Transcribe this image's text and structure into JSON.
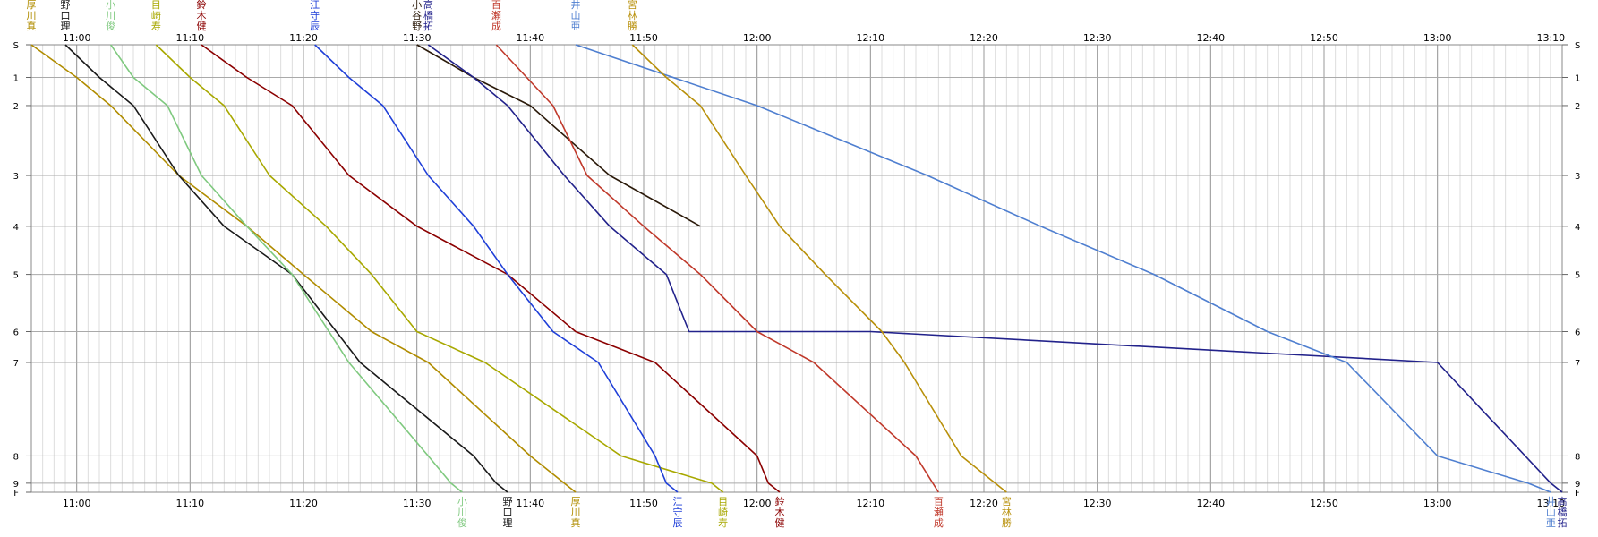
{
  "chart_data": {
    "type": "line",
    "x_unit": "time",
    "x_ticks": [
      "11:00",
      "11:10",
      "11:20",
      "11:30",
      "11:40",
      "11:50",
      "12:00",
      "12:10",
      "12:20",
      "12:30",
      "12:40",
      "12:50",
      "13:00",
      "13:10"
    ],
    "x_minor_step_min": 1,
    "x_range": [
      "10:56",
      "13:11"
    ],
    "y_ticks": [
      "S",
      "1",
      "2",
      "3",
      "4",
      "5",
      "6",
      "7",
      "8",
      "9",
      "F"
    ],
    "y_positions": [
      0,
      0.36,
      0.67,
      1.44,
      2.0,
      2.53,
      3.16,
      3.5,
      4.53,
      4.83,
      4.93
    ],
    "grid": true,
    "series": [
      {
        "name": "厚川真",
        "color": "#b08c00",
        "points": [
          [
            "10:56",
            "S"
          ],
          [
            "11:00",
            "1"
          ],
          [
            "11:03",
            "2"
          ],
          [
            "11:09",
            "3"
          ],
          [
            "11:15",
            "4"
          ],
          [
            "11:20",
            "5"
          ],
          [
            "11:26",
            "6"
          ],
          [
            "11:31",
            "7"
          ],
          [
            "11:40",
            "8"
          ],
          [
            "11:43",
            "9"
          ],
          [
            "11:44",
            "F"
          ]
        ]
      },
      {
        "name": "野口理",
        "color": "#1a1a1a",
        "points": [
          [
            "10:59",
            "S"
          ],
          [
            "11:02",
            "1"
          ],
          [
            "11:05",
            "2"
          ],
          [
            "11:09",
            "3"
          ],
          [
            "11:13",
            "4"
          ],
          [
            "11:19",
            "5"
          ],
          [
            "11:25",
            "7"
          ],
          [
            "11:35",
            "8"
          ],
          [
            "11:37",
            "9"
          ],
          [
            "11:38",
            "F"
          ]
        ]
      },
      {
        "name": "小川俊",
        "color": "#7fc97f",
        "points": [
          [
            "11:03",
            "S"
          ],
          [
            "11:05",
            "1"
          ],
          [
            "11:08",
            "2"
          ],
          [
            "11:11",
            "3"
          ],
          [
            "11:15",
            "4"
          ],
          [
            "11:19",
            "5"
          ],
          [
            "11:24",
            "7"
          ],
          [
            "11:31",
            "8"
          ],
          [
            "11:33",
            "9"
          ],
          [
            "11:34",
            "F"
          ]
        ]
      },
      {
        "name": "目崎寿",
        "color": "#a8a800",
        "points": [
          [
            "11:07",
            "S"
          ],
          [
            "11:10",
            "1"
          ],
          [
            "11:13",
            "2"
          ],
          [
            "11:17",
            "3"
          ],
          [
            "11:22",
            "4"
          ],
          [
            "11:26",
            "5"
          ],
          [
            "11:30",
            "6"
          ],
          [
            "11:36",
            "7"
          ],
          [
            "11:48",
            "8"
          ],
          [
            "11:56",
            "9"
          ],
          [
            "11:57",
            "F"
          ]
        ]
      },
      {
        "name": "鈴木健",
        "color": "#8b0000",
        "points": [
          [
            "11:11",
            "S"
          ],
          [
            "11:15",
            "1"
          ],
          [
            "11:19",
            "2"
          ],
          [
            "11:24",
            "3"
          ],
          [
            "11:30",
            "4"
          ],
          [
            "11:38",
            "5"
          ],
          [
            "11:44",
            "6"
          ],
          [
            "11:51",
            "7"
          ],
          [
            "12:00",
            "8"
          ],
          [
            "12:01",
            "9"
          ],
          [
            "12:02",
            "F"
          ]
        ]
      },
      {
        "name": "江守辰",
        "color": "#1f3fd8",
        "points": [
          [
            "11:21",
            "S"
          ],
          [
            "11:24",
            "1"
          ],
          [
            "11:27",
            "2"
          ],
          [
            "11:31",
            "3"
          ],
          [
            "11:35",
            "4"
          ],
          [
            "11:38",
            "5"
          ],
          [
            "11:42",
            "6"
          ],
          [
            "11:46",
            "7"
          ],
          [
            "11:51",
            "8"
          ],
          [
            "11:52",
            "9"
          ],
          [
            "11:53",
            "F"
          ]
        ]
      },
      {
        "name": "小谷野",
        "color": "#2b1a0a",
        "points": [
          [
            "11:30",
            "S"
          ],
          [
            "11:35",
            "1"
          ],
          [
            "11:40",
            "2"
          ],
          [
            "11:47",
            "3"
          ],
          [
            "11:55",
            "4"
          ]
        ]
      },
      {
        "name": "高橋拓",
        "color": "#22228b",
        "points": [
          [
            "11:31",
            "S"
          ],
          [
            "11:35",
            "1"
          ],
          [
            "11:38",
            "2"
          ],
          [
            "11:43",
            "3"
          ],
          [
            "11:47",
            "4"
          ],
          [
            "11:52",
            "5"
          ],
          [
            "11:54",
            "6"
          ],
          [
            "12:10",
            "6"
          ],
          [
            "13:00",
            "7"
          ],
          [
            "13:10",
            "9"
          ],
          [
            "13:11",
            "F"
          ]
        ]
      },
      {
        "name": "百瀬成",
        "color": "#c0392b",
        "points": [
          [
            "11:37",
            "S"
          ],
          [
            "11:42",
            "2"
          ],
          [
            "11:45",
            "3"
          ],
          [
            "11:50",
            "4"
          ],
          [
            "11:55",
            "5"
          ],
          [
            "12:00",
            "6"
          ],
          [
            "12:05",
            "7"
          ],
          [
            "12:14",
            "8"
          ],
          [
            "12:16",
            "F"
          ]
        ]
      },
      {
        "name": "井山亜",
        "color": "#4f7fd0",
        "points": [
          [
            "11:44",
            "S"
          ],
          [
            "12:00",
            "2"
          ],
          [
            "12:15",
            "3"
          ],
          [
            "12:25",
            "4"
          ],
          [
            "12:35",
            "5"
          ],
          [
            "12:45",
            "6"
          ],
          [
            "12:52",
            "7"
          ],
          [
            "13:00",
            "8"
          ],
          [
            "13:08",
            "9"
          ],
          [
            "13:10",
            "F"
          ]
        ]
      },
      {
        "name": "宮林勝",
        "color": "#b8900a",
        "points": [
          [
            "11:49",
            "S"
          ],
          [
            "11:52",
            "1"
          ],
          [
            "11:55",
            "2"
          ],
          [
            "11:59",
            "3"
          ],
          [
            "12:02",
            "4"
          ],
          [
            "12:06",
            "5"
          ],
          [
            "12:11",
            "6"
          ],
          [
            "12:13",
            "7"
          ],
          [
            "12:18",
            "8"
          ],
          [
            "12:21",
            "9"
          ],
          [
            "12:22",
            "F"
          ]
        ]
      }
    ],
    "top_labels": [
      "厚川真",
      "野口理",
      "小川俊",
      "目崎寿",
      "鈴木健",
      "江守辰",
      "小谷野",
      "高橋拓",
      "百瀬成",
      "井山亜",
      "宮林勝"
    ],
    "bottom_labels": [
      "小川俊",
      "野口理",
      "厚川真",
      "江守辰",
      "目崎寿",
      "鈴木健",
      "百瀬成",
      "宮林勝",
      "井山亜",
      "高橋拓"
    ]
  }
}
